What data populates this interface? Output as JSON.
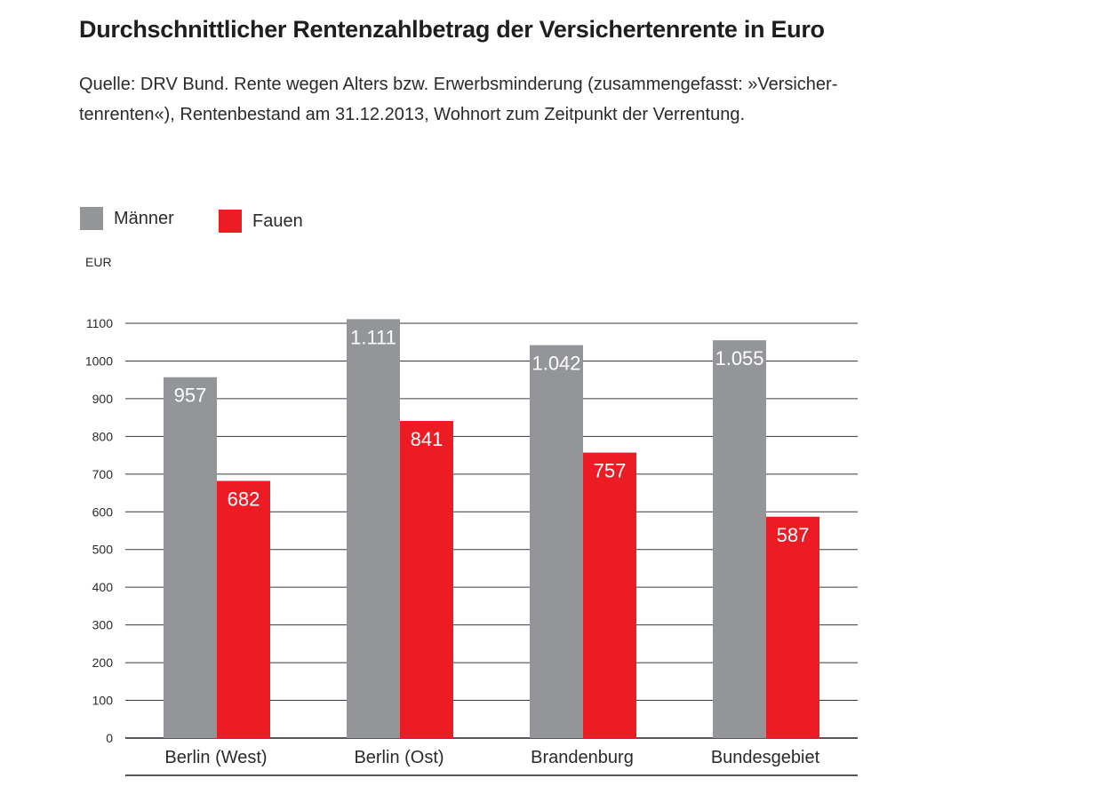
{
  "chart_data": {
    "type": "bar",
    "title": "Durchschnittlicher Rentenzahlbetrag der Versichertenrente in Euro",
    "subtitle_lines": [
      "Quelle: DRV Bund. Rente wegen Alters bzw. Erwerbsminderung (zusammengefasst: »Versicher-",
      "tenrenten«), Rentenbestand am 31.12.2013, Wohnort zum Zeitpunkt der Verrentung."
    ],
    "ylabel": "EUR",
    "ylim": [
      0,
      1100
    ],
    "yticks": [
      0,
      100,
      200,
      300,
      400,
      500,
      600,
      700,
      800,
      900,
      1000,
      1100
    ],
    "categories": [
      "Berlin (West)",
      "Berlin (Ost)",
      "Brandenburg",
      "Bundesgebiet"
    ],
    "series": [
      {
        "name": "Männer",
        "color": "#939598",
        "values": [
          957,
          1111,
          1042,
          1055
        ],
        "labels": [
          "957",
          "1.111",
          "1.042",
          "1.055"
        ]
      },
      {
        "name": "Fauen",
        "color": "#ed1c24",
        "values": [
          682,
          841,
          757,
          587
        ],
        "labels": [
          "682",
          "841",
          "757",
          "587"
        ]
      }
    ],
    "grid": true,
    "legend_position": "top-left"
  }
}
